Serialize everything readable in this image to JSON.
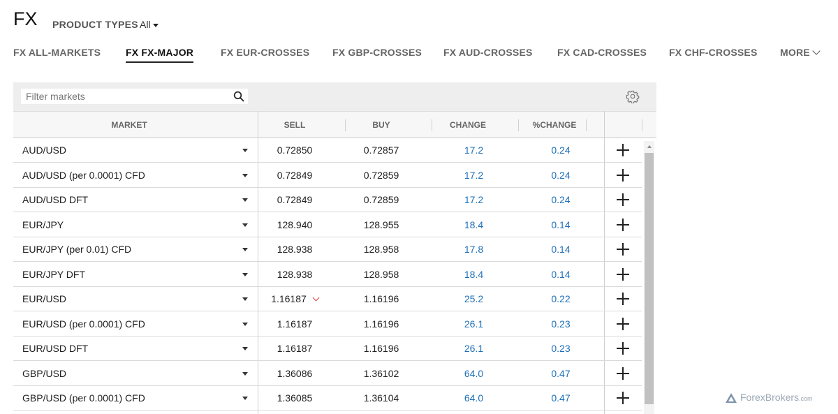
{
  "header": {
    "title": "FX",
    "product_types_label": "PRODUCT TYPES",
    "product_types_value": "All"
  },
  "tabs": [
    {
      "label": "FX ALL-MARKETS",
      "active": false
    },
    {
      "label": "FX FX-MAJOR",
      "active": true
    },
    {
      "label": "FX EUR-CROSSES",
      "active": false
    },
    {
      "label": "FX GBP-CROSSES",
      "active": false
    },
    {
      "label": "FX AUD-CROSSES",
      "active": false
    },
    {
      "label": "FX CAD-CROSSES",
      "active": false
    },
    {
      "label": "FX CHF-CROSSES",
      "active": false
    },
    {
      "label": "MORE",
      "active": false
    }
  ],
  "toolbar": {
    "filter_placeholder": "Filter markets",
    "search_icon": "search-icon",
    "settings_icon": "gear-icon"
  },
  "table": {
    "columns": [
      "MARKET",
      "SELL",
      "BUY",
      "CHANGE",
      "%CHANGE"
    ],
    "rows": [
      {
        "market": "AUD/USD",
        "sell": "0.72850",
        "buy": "0.72857",
        "change": "17.2",
        "pct": "0.24",
        "sell_down": false
      },
      {
        "market": "AUD/USD (per 0.0001) CFD",
        "sell": "0.72849",
        "buy": "0.72859",
        "change": "17.2",
        "pct": "0.24",
        "sell_down": false
      },
      {
        "market": "AUD/USD DFT",
        "sell": "0.72849",
        "buy": "0.72859",
        "change": "17.2",
        "pct": "0.24",
        "sell_down": false
      },
      {
        "market": "EUR/JPY",
        "sell": "128.940",
        "buy": "128.955",
        "change": "18.4",
        "pct": "0.14",
        "sell_down": false
      },
      {
        "market": "EUR/JPY (per 0.01) CFD",
        "sell": "128.938",
        "buy": "128.958",
        "change": "17.8",
        "pct": "0.14",
        "sell_down": false
      },
      {
        "market": "EUR/JPY DFT",
        "sell": "128.938",
        "buy": "128.958",
        "change": "18.4",
        "pct": "0.14",
        "sell_down": false
      },
      {
        "market": "EUR/USD",
        "sell": "1.16187",
        "buy": "1.16196",
        "change": "25.2",
        "pct": "0.22",
        "sell_down": true
      },
      {
        "market": "EUR/USD (per 0.0001) CFD",
        "sell": "1.16187",
        "buy": "1.16196",
        "change": "26.1",
        "pct": "0.23",
        "sell_down": false
      },
      {
        "market": "EUR/USD DFT",
        "sell": "1.16187",
        "buy": "1.16196",
        "change": "26.1",
        "pct": "0.23",
        "sell_down": false
      },
      {
        "market": "GBP/USD",
        "sell": "1.36086",
        "buy": "1.36102",
        "change": "64.0",
        "pct": "0.47",
        "sell_down": false
      },
      {
        "market": "GBP/USD (per 0.0001) CFD",
        "sell": "1.36085",
        "buy": "1.36104",
        "change": "64.0",
        "pct": "0.47",
        "sell_down": false
      }
    ]
  },
  "colors": {
    "change_blue": "#1d6fb8",
    "down_red": "#d13b3b",
    "toolbar_bg": "#eeeeee"
  },
  "watermark": {
    "brand": "ForexBrokers",
    "suffix": ".com"
  }
}
